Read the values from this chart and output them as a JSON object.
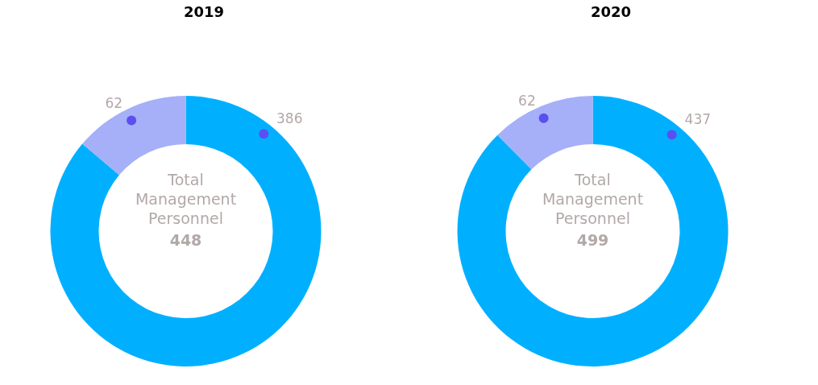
{
  "chart_data": [
    {
      "type": "donut",
      "title": "2019",
      "categories": [
        null,
        null
      ],
      "values": [
        386,
        62
      ],
      "colors": [
        "#00b0ff",
        "#a6b0f8"
      ],
      "data_labels": true,
      "annotations": [
        "Total Management Personnel",
        "448"
      ]
    },
    {
      "type": "donut",
      "title": "2020",
      "categories": [
        null,
        null
      ],
      "values": [
        437,
        62
      ],
      "colors": [
        "#00b0ff",
        "#a6b0f8"
      ],
      "data_labels": true,
      "annotations": [
        "Total Management Personnel",
        "499"
      ]
    }
  ]
}
